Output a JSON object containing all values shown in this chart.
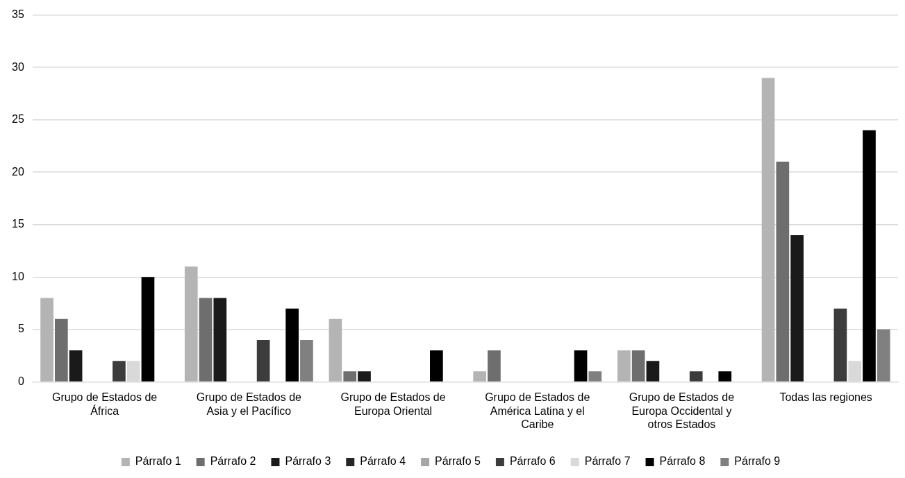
{
  "chart_data": {
    "type": "bar",
    "categories": [
      "Grupo de Estados de África",
      "Grupo de Estados de Asia y el Pacífico",
      "Grupo de Estados de Europa Oriental",
      "Grupo de Estados de América Latina y el Caribe",
      "Grupo de Estados de Europa Occidental y otros Estados",
      "Todas las regiones"
    ],
    "series": [
      {
        "name": "Párrafo 1",
        "color": "#b4b4b4",
        "values": [
          8,
          11,
          6,
          1,
          3,
          29
        ]
      },
      {
        "name": "Párrafo 2",
        "color": "#6e6e6e",
        "values": [
          6,
          8,
          1,
          3,
          3,
          21
        ]
      },
      {
        "name": "Párrafo 3",
        "color": "#1a1a1a",
        "values": [
          3,
          8,
          1,
          0,
          2,
          14
        ]
      },
      {
        "name": "Párrafo 4",
        "color": "#262626",
        "values": [
          0,
          0,
          0,
          0,
          0,
          0
        ]
      },
      {
        "name": "Párrafo 5",
        "color": "#a6a6a6",
        "values": [
          0,
          0,
          0,
          0,
          0,
          0
        ]
      },
      {
        "name": "Párrafo 6",
        "color": "#3c3c3c",
        "values": [
          2,
          4,
          0,
          0,
          1,
          7
        ]
      },
      {
        "name": "Párrafo 7",
        "color": "#d9d9d9",
        "values": [
          2,
          0,
          0,
          0,
          0,
          2
        ]
      },
      {
        "name": "Párrafo 8",
        "color": "#000000",
        "values": [
          10,
          7,
          3,
          3,
          1,
          24
        ]
      },
      {
        "name": "Párrafo 9",
        "color": "#808080",
        "values": [
          0,
          4,
          0,
          1,
          0,
          5
        ]
      }
    ],
    "ylim": [
      0,
      35
    ],
    "yticks": [
      0,
      5,
      10,
      15,
      20,
      25,
      30,
      35
    ],
    "grid": "y",
    "legend": "bottom"
  }
}
